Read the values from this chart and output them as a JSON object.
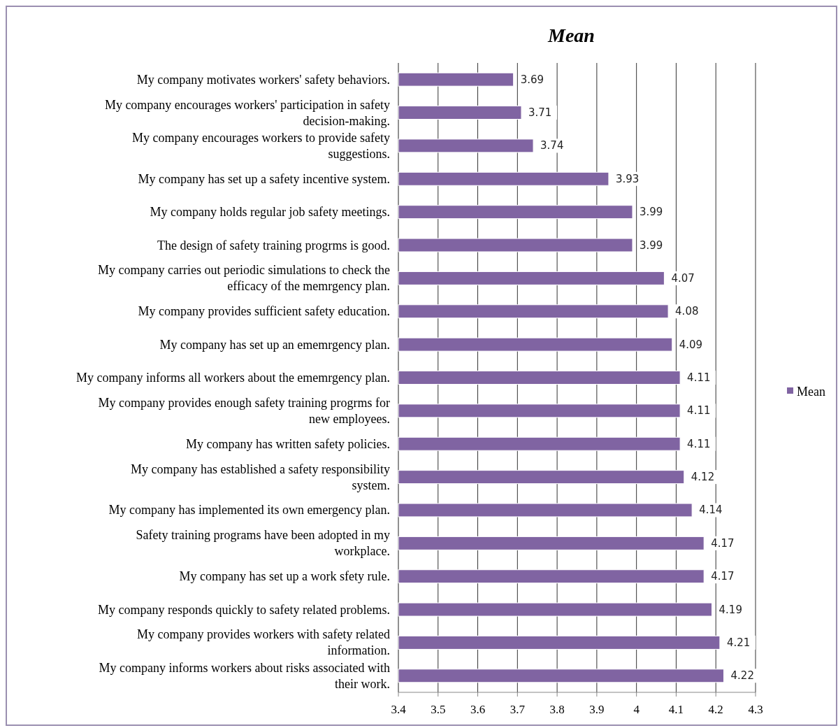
{
  "chart_data": {
    "type": "bar",
    "orientation": "horizontal",
    "title": "Mean",
    "categories": [
      "My company motivates workers' safety behaviors.",
      "My company encourages workers' participation in safety decision-making.",
      "My company encourages workers to provide safety suggestions.",
      "My company has set up a safety incentive system.",
      "My company holds regular job safety meetings.",
      "The design of safety training progrms is good.",
      "My company carries out periodic simulations to check the efficacy of the memrgency plan.",
      "My company provides sufficient safety education.",
      "My company has set up an ememrgency plan.",
      "My company informs all workers about the ememrgency plan.",
      "My company provides enough safety training progrms for new employees.",
      "My company has written safety policies.",
      "My company has established a safety responsibility system.",
      "My company has implemented its own emergency plan.",
      "Safety training programs have been adopted in my workplace.",
      "My company has set up a work sfety rule.",
      "My company responds quickly to safety related problems.",
      "My company provides workers with safety related information.",
      "My company informs workers about risks associated with their work."
    ],
    "series": [
      {
        "name": "Mean",
        "color": "#8064a2",
        "values": [
          3.69,
          3.71,
          3.74,
          3.93,
          3.99,
          3.99,
          4.07,
          4.08,
          4.09,
          4.11,
          4.11,
          4.11,
          4.12,
          4.14,
          4.17,
          4.17,
          4.19,
          4.21,
          4.22
        ]
      }
    ],
    "xlim": [
      3.4,
      4.3
    ],
    "xticks": [
      3.4,
      3.5,
      3.6,
      3.7,
      3.8,
      3.9,
      4,
      4.1,
      4.2,
      4.3
    ],
    "grid": "x",
    "legend": "right",
    "data_labels": true
  }
}
